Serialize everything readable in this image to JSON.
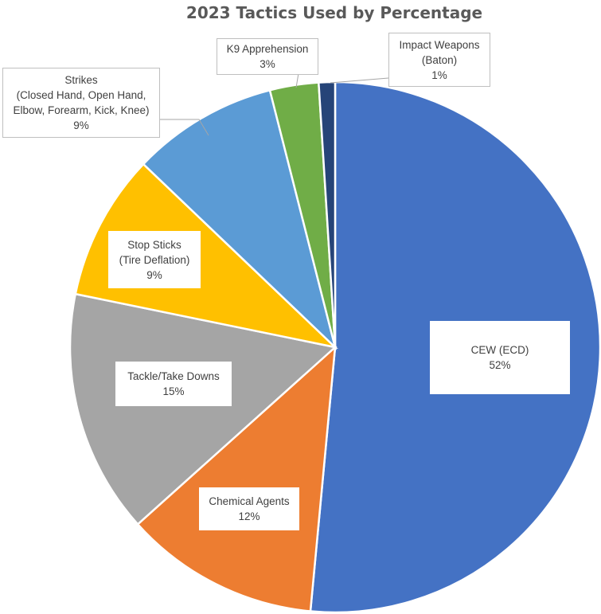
{
  "chart_data": {
    "type": "pie",
    "title": "2023 Tactics Used by Percentage",
    "slices": [
      {
        "name": "CEW (ECD)",
        "value_label": "52%",
        "value": 52,
        "color": "#4472C4"
      },
      {
        "name": "Chemical Agents",
        "value_label": "12%",
        "value": 12,
        "color": "#ED7D31"
      },
      {
        "name": "Tackle/Take Downs",
        "value_label": "15%",
        "value": 15,
        "color": "#A5A5A5"
      },
      {
        "name": "Stop Sticks (Tire Deflation)",
        "value_label": "9%",
        "value": 9,
        "color": "#FFC000"
      },
      {
        "name": "Strikes (Closed Hand, Open Hand, Elbow, Forearm, Kick, Knee)",
        "value_label": "9%",
        "value": 9,
        "color": "#5B9BD5"
      },
      {
        "name": "K9 Apprehension",
        "value_label": "3%",
        "value": 3,
        "color": "#70AD47"
      },
      {
        "name": "Impact Weapons (Baton)",
        "value_label": "1%",
        "value": 1,
        "color": "#264478"
      }
    ]
  },
  "labels": {
    "cew_line1": "CEW (ECD)",
    "chem_line1": "Chemical Agents",
    "tackle_line1": "Tackle/Take Downs",
    "stop_line1": "Stop Sticks",
    "stop_line2": "(Tire Deflation)",
    "strikes_line1": "Strikes",
    "strikes_line2": "(Closed Hand, Open Hand,",
    "strikes_line3": "Elbow, Forearm, Kick, Knee)",
    "k9_line1": "K9 Apprehension",
    "impact_line1": "Impact Weapons",
    "impact_line2": "(Baton)"
  }
}
